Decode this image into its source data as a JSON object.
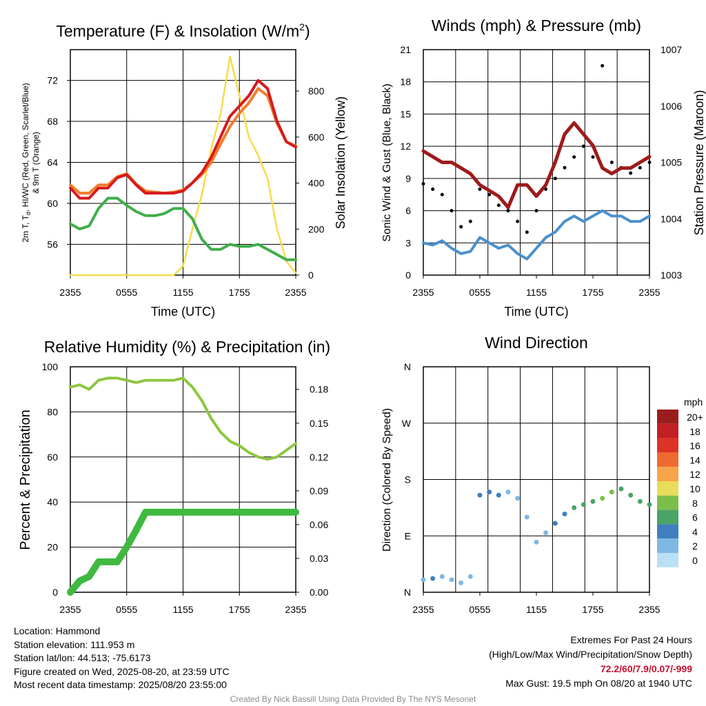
{
  "colors": {
    "temp_2m": "#d7191c",
    "temp_9m": "#f17c2b",
    "dewpoint": "#3fae49",
    "solar": "#f5dc4a",
    "wind": "#4a90cf",
    "gust": "#000000",
    "pressure": "#9e1a1a",
    "rh": "#8dc63f",
    "precip": "#3fb940"
  },
  "chart_data": [
    {
      "id": "temperature",
      "type": "line",
      "title": "Temperature (F) & Insolation (W/m²)",
      "xlabel": "Time (UTC)",
      "ylabel": "2m T, Tₔ, HI/WC (Red, Green, Scarlet/Blue) & 9m T (Orange)",
      "ylabel_line1": "2m T, T",
      "ylabel_sub": "d",
      "ylabel_line1_rest": ", HI/WC (Red, Green, Scarlet/Blue)",
      "ylabel_line2": "& 9m T (Orange)",
      "ylabel_right": "Solar Insolation (Yellow)",
      "x_ticks": [
        "2355",
        "0555",
        "1155",
        "1755",
        "2355"
      ],
      "ylim": [
        53,
        75
      ],
      "y_ticks": [
        56,
        60,
        64,
        68,
        72
      ],
      "ylim_right": [
        0,
        980
      ],
      "y_ticks_right": [
        0,
        200,
        400,
        600,
        800
      ],
      "x_hours": [
        0,
        1,
        2,
        3,
        4,
        5,
        6,
        7,
        8,
        9,
        10,
        11,
        12,
        13,
        14,
        15,
        16,
        17,
        18,
        19,
        20,
        21,
        22,
        23,
        24
      ],
      "series": [
        {
          "name": "2m T",
          "color_key": "temp_2m",
          "values": [
            61.5,
            60.5,
            60.5,
            61.5,
            61.5,
            62.5,
            62.8,
            61.8,
            61.0,
            61.0,
            61.0,
            61.0,
            61.2,
            62.0,
            63.0,
            64.5,
            66.5,
            68.5,
            69.5,
            70.5,
            72.0,
            71.2,
            68.0,
            66.0,
            65.5
          ]
        },
        {
          "name": "9m T",
          "color_key": "temp_9m",
          "values": [
            61.8,
            61.0,
            61.0,
            61.8,
            61.8,
            62.6,
            62.9,
            61.9,
            61.2,
            61.1,
            61.0,
            61.1,
            61.3,
            62.0,
            62.8,
            64.0,
            65.8,
            67.5,
            68.8,
            69.8,
            71.2,
            70.5,
            67.8,
            66.0,
            65.6
          ]
        },
        {
          "name": "Td",
          "color_key": "dewpoint",
          "values": [
            58.0,
            57.5,
            57.8,
            59.5,
            60.5,
            60.5,
            59.8,
            59.2,
            58.8,
            58.8,
            59.0,
            59.5,
            59.5,
            58.5,
            56.5,
            55.5,
            55.5,
            56.0,
            55.8,
            55.8,
            56.0,
            55.5,
            55.0,
            54.5,
            54.5
          ]
        },
        {
          "name": "Solar",
          "color_key": "solar",
          "axis": "right",
          "values": [
            0,
            0,
            0,
            0,
            0,
            0,
            0,
            0,
            0,
            0,
            0,
            0,
            40,
            200,
            350,
            550,
            700,
            950,
            780,
            600,
            520,
            420,
            200,
            60,
            10
          ]
        }
      ]
    },
    {
      "id": "winds",
      "type": "line",
      "title": "Winds (mph) & Pressure (mb)",
      "xlabel": "Time (UTC)",
      "ylabel": "Sonic Wind & Gust (Blue, Black)",
      "ylabel_right": "Station Pressure (Maroon)",
      "x_ticks": [
        "2355",
        "0555",
        "1155",
        "1755",
        "2355"
      ],
      "ylim": [
        0,
        21
      ],
      "y_ticks": [
        0,
        3,
        6,
        9,
        12,
        15,
        18,
        21
      ],
      "ylim_right": [
        1003,
        1007
      ],
      "y_ticks_right": [
        1003,
        1004,
        1005,
        1006,
        1007
      ],
      "x_hours": [
        0,
        1,
        2,
        3,
        4,
        5,
        6,
        7,
        8,
        9,
        10,
        11,
        12,
        13,
        14,
        15,
        16,
        17,
        18,
        19,
        20,
        21,
        22,
        23,
        24
      ],
      "series": [
        {
          "name": "Wind",
          "color_key": "wind",
          "values": [
            3.0,
            2.8,
            3.2,
            2.5,
            2.0,
            2.2,
            3.5,
            3.0,
            2.5,
            2.8,
            2.0,
            1.5,
            2.5,
            3.5,
            4.0,
            5.0,
            5.5,
            5.0,
            5.5,
            6.0,
            5.5,
            5.5,
            5.0,
            5.0,
            5.5
          ]
        },
        {
          "name": "Gust",
          "color_key": "gust",
          "type": "scatter",
          "values": [
            8.5,
            8.0,
            7.5,
            6.0,
            4.5,
            5.0,
            8.0,
            7.5,
            6.5,
            6.0,
            5.0,
            4.0,
            6.0,
            8.0,
            9.0,
            10.0,
            11.0,
            12.0,
            11.0,
            19.5,
            10.5,
            10.0,
            9.5,
            10.0,
            10.5
          ]
        },
        {
          "name": "Pressure",
          "color_key": "pressure",
          "axis": "right",
          "values": [
            1005.2,
            1005.1,
            1005.0,
            1005.0,
            1004.9,
            1004.8,
            1004.6,
            1004.5,
            1004.4,
            1004.2,
            1004.6,
            1004.6,
            1004.4,
            1004.6,
            1005.0,
            1005.5,
            1005.7,
            1005.5,
            1005.3,
            1004.9,
            1004.8,
            1004.9,
            1004.9,
            1005.0,
            1005.1
          ]
        }
      ]
    },
    {
      "id": "humidity",
      "type": "line",
      "title": "Relative Humidity (%) & Precipitation (in)",
      "xlabel": "",
      "ylabel": "Percent & Precipitation",
      "x_ticks": [
        "2355",
        "0555",
        "1155",
        "1755",
        "2355"
      ],
      "ylim": [
        0,
        100
      ],
      "y_ticks": [
        0,
        20,
        40,
        60,
        80,
        100
      ],
      "ylim_right": [
        0,
        0.2
      ],
      "y_ticks_right": [
        "0.00",
        "0.03",
        "0.06",
        "0.09",
        "0.12",
        "0.15",
        "0.18"
      ],
      "x_hours": [
        0,
        1,
        2,
        3,
        4,
        5,
        6,
        7,
        8,
        9,
        10,
        11,
        12,
        13,
        14,
        15,
        16,
        17,
        18,
        19,
        20,
        21,
        22,
        23,
        24
      ],
      "series": [
        {
          "name": "RH",
          "color_key": "rh",
          "values": [
            91,
            92,
            90,
            94,
            95,
            95,
            94,
            93,
            94,
            94,
            94,
            94,
            95,
            91,
            85,
            77,
            71,
            67,
            65,
            62,
            60,
            59,
            60,
            63,
            66
          ]
        },
        {
          "name": "Precip",
          "color_key": "precip",
          "axis": "right",
          "values": [
            0.0,
            0.01,
            0.014,
            0.027,
            0.027,
            0.027,
            0.04,
            0.055,
            0.071,
            0.071,
            0.071,
            0.071,
            0.071,
            0.071,
            0.071,
            0.071,
            0.071,
            0.071,
            0.071,
            0.071,
            0.071,
            0.071,
            0.071,
            0.071,
            0.071
          ]
        }
      ]
    },
    {
      "id": "wind-direction",
      "type": "scatter",
      "title": "Wind Direction",
      "xlabel": "",
      "ylabel": "Direction (Colored By Speed)",
      "x_ticks": [
        "2355",
        "0555",
        "1155",
        "1755",
        "2355"
      ],
      "y_ticks": [
        "N",
        "E",
        "S",
        "W",
        "N"
      ],
      "ylim": [
        0,
        360
      ],
      "legend_title": "mph",
      "legend": [
        "20+",
        "18",
        "16",
        "14",
        "12",
        "10",
        "8",
        "6",
        "4",
        "2",
        "0"
      ],
      "legend_colors": [
        "#9b1c1c",
        "#c21f25",
        "#dd3226",
        "#ef6a2e",
        "#f7a44a",
        "#e8dd5a",
        "#7bbf4a",
        "#4aa466",
        "#3f7fbf",
        "#7fb7e3",
        "#b9e0f5"
      ],
      "x_hours": [
        0,
        1,
        2,
        3,
        4,
        5,
        6,
        7,
        8,
        9,
        10,
        11,
        12,
        13,
        14,
        15,
        16,
        17,
        18,
        19,
        20,
        21,
        22,
        23,
        24
      ],
      "values": [
        20,
        22,
        25,
        20,
        15,
        25,
        155,
        160,
        155,
        160,
        150,
        120,
        80,
        95,
        110,
        125,
        135,
        140,
        145,
        150,
        160,
        165,
        155,
        145,
        140
      ],
      "speeds": [
        2,
        3,
        2,
        2,
        1,
        2,
        4,
        4,
        3,
        2,
        2,
        1,
        1,
        2,
        3,
        4,
        5,
        6,
        6,
        7,
        8,
        6,
        5,
        5,
        6
      ]
    }
  ],
  "info": {
    "location": "Location: Hammond",
    "elevation": "Station elevation: 111.953 m",
    "latlon": "Station lat/lon: 44.513; -75.6173",
    "created": "Figure created on Wed, 2025-08-20, at 23:59 UTC",
    "recent": "Most recent data timestamp: 2025/08/20 23:55:00"
  },
  "extremes": {
    "title": "Extremes For Past 24 Hours",
    "subtitle": "(High/Low/Max Wind/Precipitation/Snow Depth)",
    "values": "72.2/60/7.9/0.07/-999",
    "gust": "Max Gust: 19.5 mph On 08/20 at 1940 UTC"
  },
  "credit": "Created By Nick Bassill Using Data Provided By The NYS Mesonet"
}
